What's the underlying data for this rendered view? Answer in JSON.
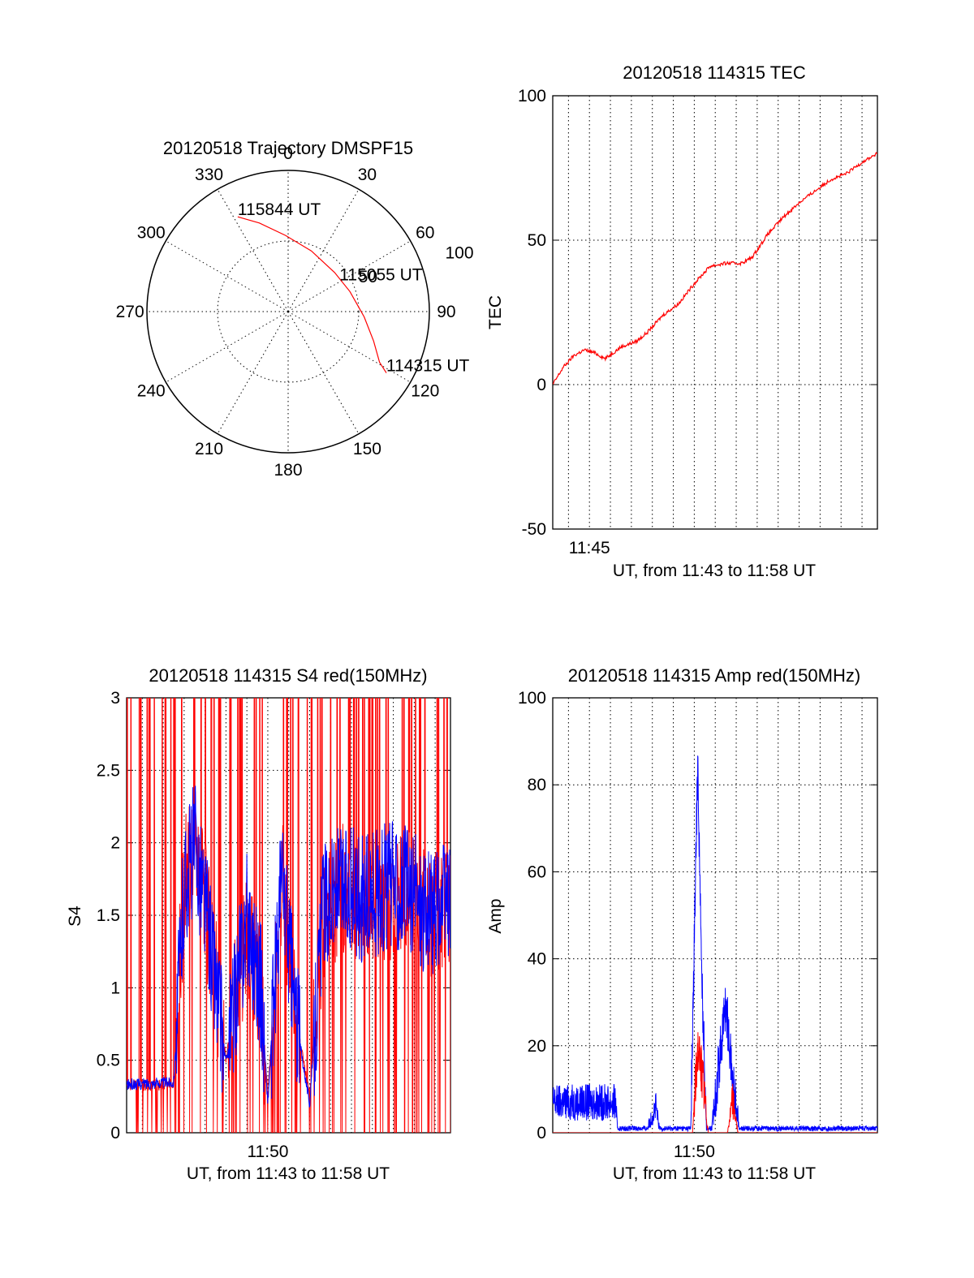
{
  "colors": {
    "red_series": "#ff0000",
    "blue_series": "#0000ff",
    "axes": "#000000",
    "background": "#ffffff"
  },
  "chart_data": [
    {
      "id": "trajectory",
      "type": "polar",
      "title": "20120518 Trajectory DMSPF15",
      "angle_ticks": [
        "0",
        "30",
        "60",
        "90",
        "120",
        "150",
        "180",
        "210",
        "240",
        "270",
        "300",
        "330"
      ],
      "radial_labels": [
        "50",
        "100"
      ],
      "rlim": [
        0,
        100
      ],
      "grid": true,
      "series": [
        {
          "color": "#ff0000",
          "points": [
            {
              "az": 332,
              "r": 76
            },
            {
              "az": 342,
              "r": 66
            },
            {
              "az": 358,
              "r": 54
            },
            {
              "az": 21,
              "r": 46
            },
            {
              "az": 50,
              "r": 43
            },
            {
              "az": 72,
              "r": 46
            },
            {
              "az": 94,
              "r": 54
            },
            {
              "az": 109,
              "r": 64
            },
            {
              "az": 119,
              "r": 74
            },
            {
              "az": 122,
              "r": 82
            }
          ]
        }
      ],
      "annotations": [
        {
          "text": "115844 UT",
          "az": 332,
          "r": 76
        },
        {
          "text": "115055 UT",
          "az": 60,
          "r": 42
        },
        {
          "text": "114315 UT",
          "az": 122,
          "r": 82
        }
      ]
    },
    {
      "id": "tec",
      "type": "line",
      "title": "20120518 114315 TEC",
      "xlabel": "UT, from 11:43 to 11:58 UT",
      "ylabel": "TEC",
      "xlim": [
        "11:43:15",
        "11:58:44"
      ],
      "ylim": [
        -50,
        100
      ],
      "yticks": [
        "-50",
        "0",
        "50",
        "100"
      ],
      "xticks": [
        {
          "t": "11:45",
          "label": "11:45"
        }
      ],
      "grid": true,
      "series": [
        {
          "color": "#ff0000",
          "t": [
            "11:43:15",
            "11:43:45",
            "11:44:15",
            "11:44:45",
            "11:45:15",
            "11:45:45",
            "11:46:30",
            "11:47:15",
            "11:47:45",
            "11:48:30",
            "11:49:15",
            "11:50:00",
            "11:50:45",
            "11:51:30",
            "11:52:15",
            "11:52:45",
            "11:53:30",
            "11:54:15",
            "11:55:00",
            "11:55:45",
            "11:56:30",
            "11:57:15",
            "11:58:00",
            "11:58:44"
          ],
          "values": [
            0,
            6,
            10,
            12,
            11,
            9,
            13,
            15,
            18,
            24,
            28,
            35,
            41,
            42,
            42,
            44,
            52,
            58,
            63,
            67,
            71,
            73,
            77,
            80
          ]
        }
      ]
    },
    {
      "id": "s4",
      "type": "line",
      "title": "20120518 114315 S4 red(150MHz)",
      "xlabel": "UT, from 11:43 to 11:58 UT",
      "ylabel": "S4",
      "xlim": [
        "11:43:15",
        "11:58:44"
      ],
      "ylim": [
        0,
        3
      ],
      "yticks": [
        "0",
        "0.5",
        "1",
        "1.5",
        "2",
        "2.5",
        "3"
      ],
      "xticks": [
        {
          "t": "11:50",
          "label": "11:50"
        }
      ],
      "grid": true,
      "series": [
        {
          "color": "#ff0000",
          "t": [
            "11:43:15",
            "11:45:30",
            "11:46:00",
            "11:46:30",
            "11:47:00",
            "11:48:00",
            "11:49:00",
            "11:49:40",
            "11:50:00",
            "11:50:40",
            "11:51:20",
            "11:52:00",
            "11:52:40",
            "11:53:40",
            "11:54:40",
            "11:55:40",
            "11:56:40",
            "11:57:40",
            "11:58:44"
          ],
          "values": [
            0.33,
            0.33,
            1.7,
            2.0,
            1.6,
            0.5,
            1.4,
            1.0,
            0.25,
            1.8,
            0.8,
            0.25,
            1.5,
            1.7,
            1.6,
            1.6,
            1.7,
            1.5,
            1.6
          ]
        },
        {
          "color": "#0000ff",
          "t": [
            "11:43:15",
            "11:45:30",
            "11:46:00",
            "11:46:30",
            "11:47:00",
            "11:48:00",
            "11:49:00",
            "11:49:40",
            "11:50:00",
            "11:50:40",
            "11:51:20",
            "11:52:00",
            "11:52:40",
            "11:53:40",
            "11:54:40",
            "11:55:40",
            "11:56:40",
            "11:57:40",
            "11:58:44"
          ],
          "values": [
            0.33,
            0.35,
            1.7,
            2.0,
            1.6,
            0.48,
            1.5,
            1.0,
            0.2,
            1.8,
            0.8,
            0.2,
            1.6,
            1.7,
            1.6,
            1.7,
            1.7,
            1.5,
            1.6
          ]
        }
      ]
    },
    {
      "id": "amp",
      "type": "line",
      "title": "20120518 114315 Amp red(150MHz)",
      "xlabel": "UT, from 11:43 to 11:58 UT",
      "ylabel": "Amp",
      "xlim": [
        "11:43:15",
        "11:58:44"
      ],
      "ylim": [
        0,
        100
      ],
      "yticks": [
        "0",
        "20",
        "40",
        "60",
        "80",
        "100"
      ],
      "xticks": [
        {
          "t": "11:50",
          "label": "11:50"
        }
      ],
      "grid": true,
      "series": [
        {
          "color": "#0000ff",
          "t": [
            "11:43:15",
            "11:46:15",
            "11:46:20",
            "11:47:45",
            "11:48:10",
            "11:48:20",
            "11:49:50",
            "11:50:10",
            "11:50:20",
            "11:50:35",
            "11:50:50",
            "11:51:30",
            "11:51:50",
            "11:52:10",
            "11:52:30",
            "11:58:44"
          ],
          "values": [
            7,
            7,
            1,
            1,
            6,
            1,
            1,
            86,
            40,
            1,
            1,
            30,
            12,
            1,
            1,
            1
          ]
        },
        {
          "color": "#ff0000",
          "t": [
            "11:43:15",
            "11:49:55",
            "11:50:10",
            "11:50:25",
            "11:50:40",
            "11:51:35",
            "11:51:50",
            "11:52:05",
            "11:58:44"
          ],
          "values": [
            0,
            0,
            20,
            12,
            0,
            0,
            8,
            0,
            0
          ]
        }
      ]
    }
  ]
}
